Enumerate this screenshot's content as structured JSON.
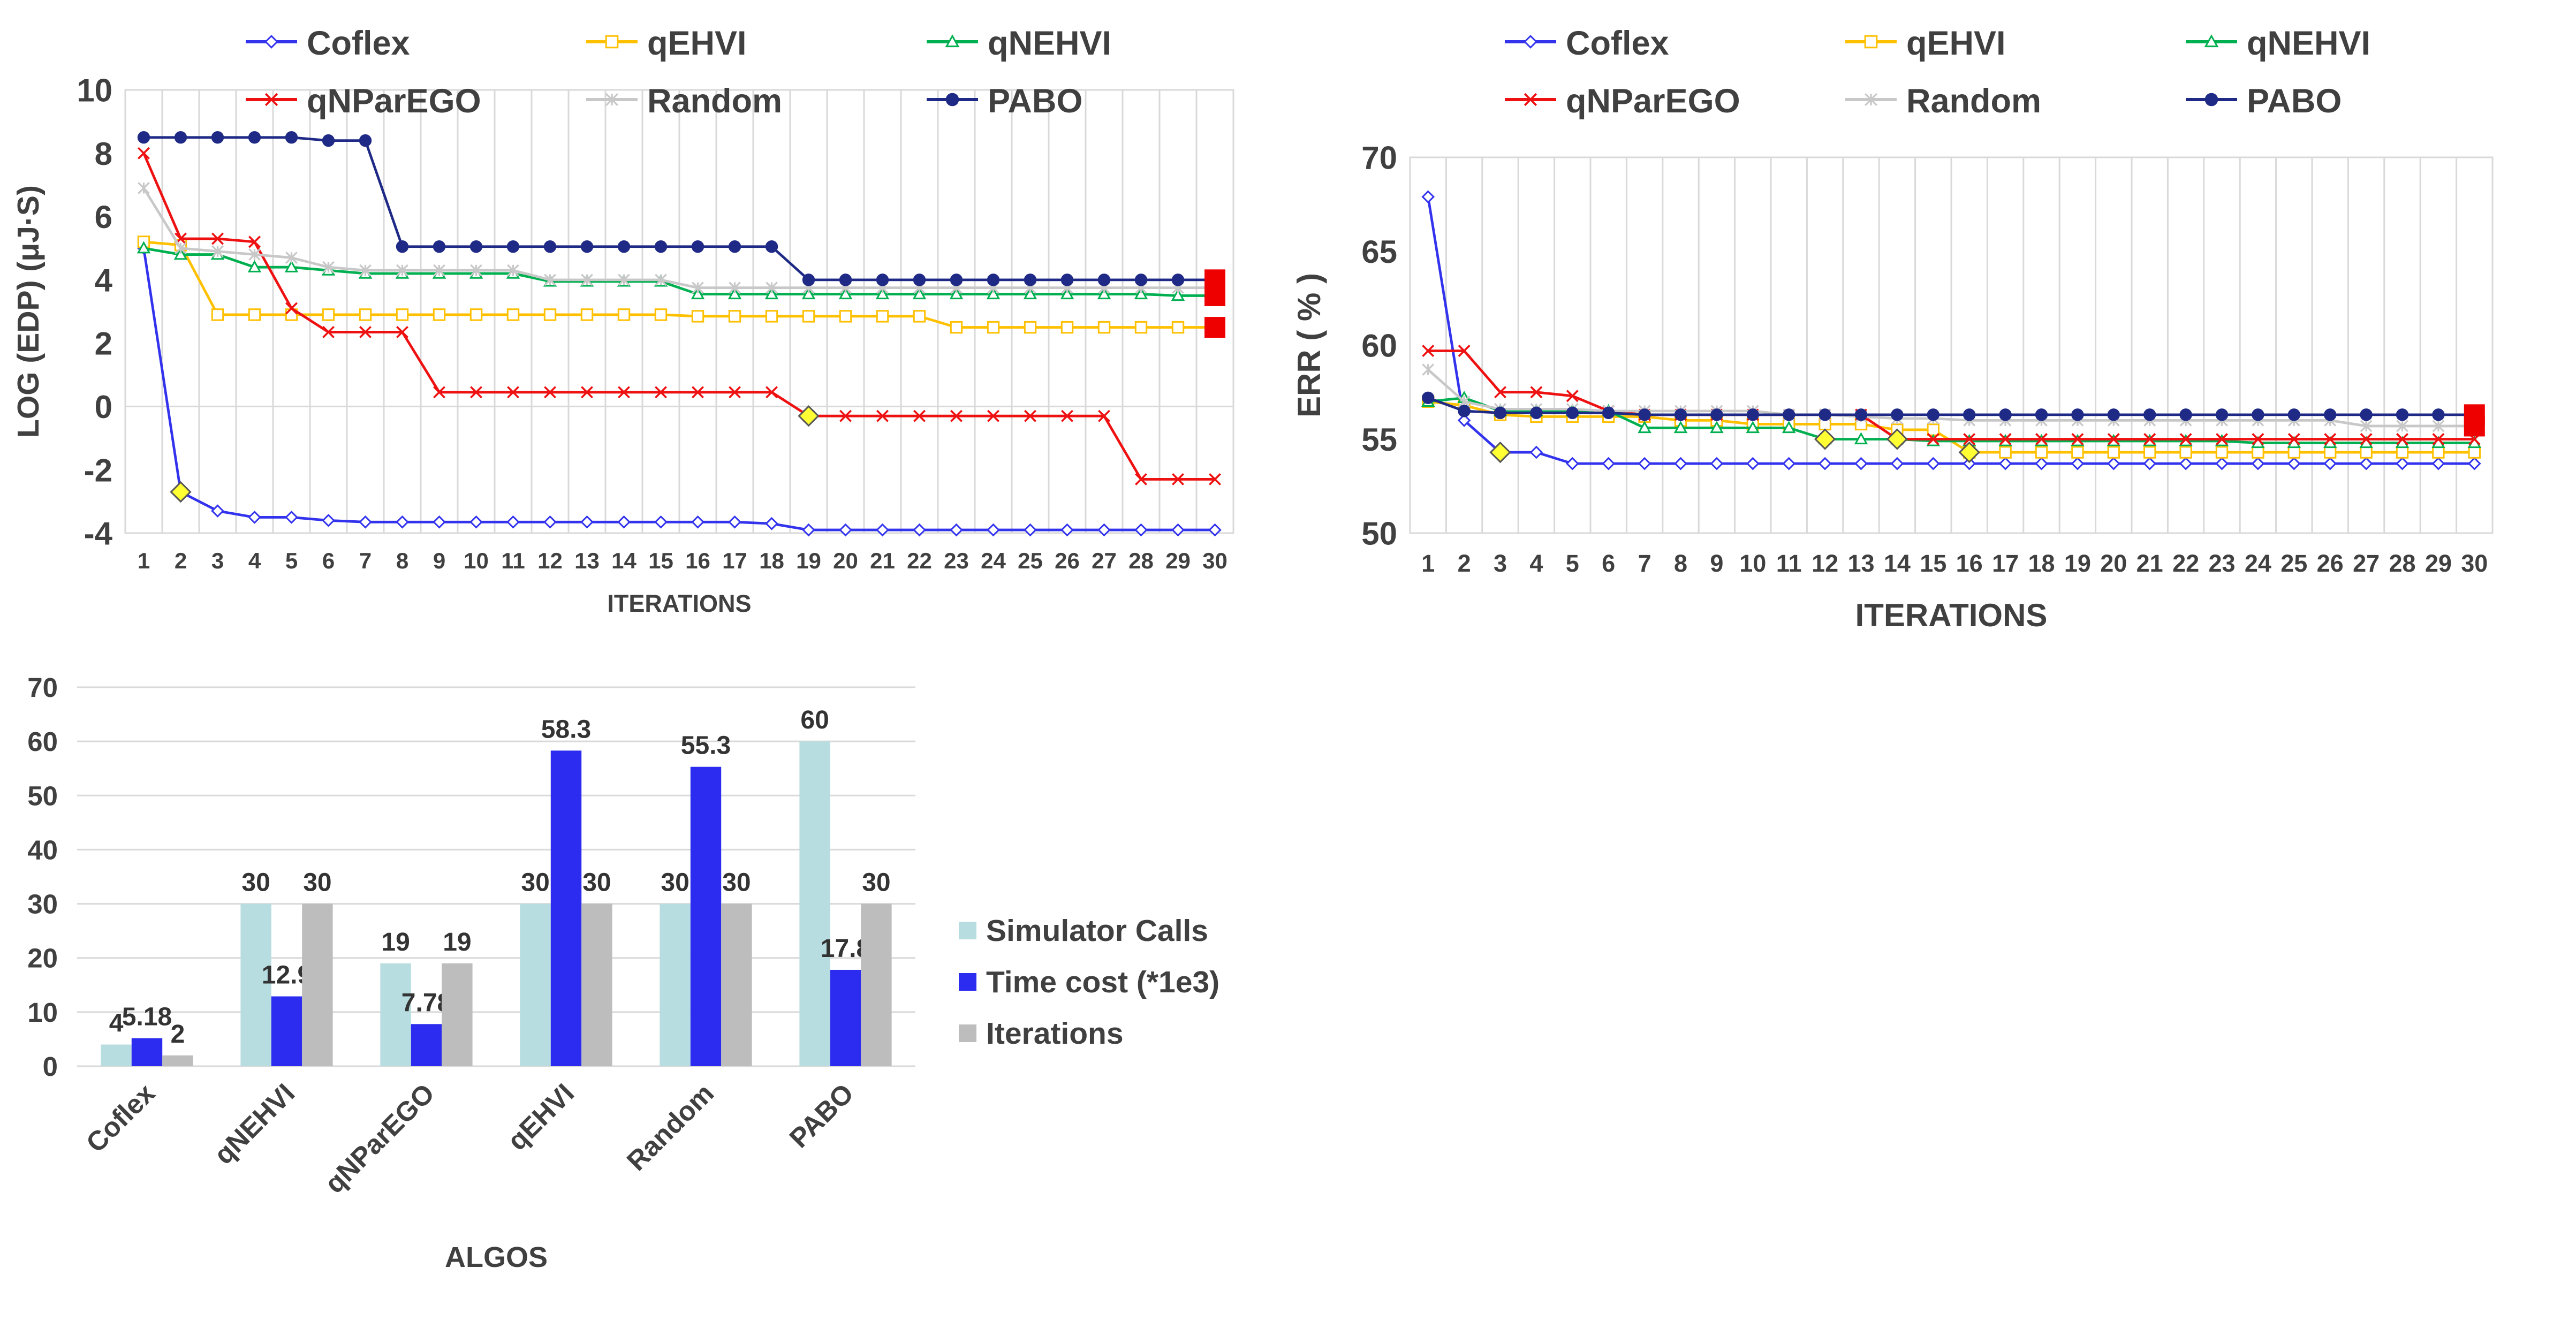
{
  "chart_data": [
    {
      "type": "line",
      "title": "",
      "xlabel": "ITERATIONS",
      "ylabel": "LOG (EDP) (μJ·S)",
      "ylim": [
        -4,
        10
      ],
      "yticks": [
        -4,
        -2,
        0,
        2,
        4,
        6,
        8,
        10
      ],
      "grid": "vertical",
      "legend_placement": "top",
      "x": [
        "1",
        "2",
        "3",
        "4",
        "5",
        "6",
        "7",
        "8",
        "9",
        "10",
        "11",
        "12",
        "13",
        "14",
        "15",
        "16",
        "17",
        "18",
        "19",
        "20",
        "21",
        "22",
        "23",
        "24",
        "25",
        "26",
        "27",
        "28",
        "29",
        "30"
      ],
      "series": [
        {
          "name": "Coflex",
          "color": "#3333ee",
          "marker": "diamond",
          "values": [
            5.0,
            -2.7,
            -3.3,
            -3.5,
            -3.5,
            -3.6,
            -3.65,
            -3.65,
            -3.65,
            -3.65,
            -3.65,
            -3.65,
            -3.65,
            -3.65,
            -3.65,
            -3.65,
            -3.65,
            -3.7,
            -3.9,
            -3.9,
            -3.9,
            -3.9,
            -3.9,
            -3.9,
            -3.9,
            -3.9,
            -3.9,
            -3.9,
            -3.9,
            -3.9
          ]
        },
        {
          "name": "qEHVI",
          "color": "#ffc000",
          "marker": "square",
          "values": [
            5.2,
            5.1,
            2.9,
            2.9,
            2.9,
            2.9,
            2.9,
            2.9,
            2.9,
            2.9,
            2.9,
            2.9,
            2.9,
            2.9,
            2.9,
            2.85,
            2.85,
            2.85,
            2.85,
            2.85,
            2.85,
            2.85,
            2.5,
            2.5,
            2.5,
            2.5,
            2.5,
            2.5,
            2.5,
            2.5
          ]
        },
        {
          "name": "qNEHVI",
          "color": "#00b050",
          "marker": "triangle",
          "values": [
            5.0,
            4.8,
            4.8,
            4.4,
            4.4,
            4.3,
            4.2,
            4.2,
            4.2,
            4.2,
            4.2,
            3.95,
            3.95,
            3.95,
            3.95,
            3.55,
            3.55,
            3.55,
            3.55,
            3.55,
            3.55,
            3.55,
            3.55,
            3.55,
            3.55,
            3.55,
            3.55,
            3.55,
            3.5,
            3.5
          ]
        },
        {
          "name": "qNParEGO",
          "color": "#ee1111",
          "marker": "x",
          "values": [
            8.0,
            5.3,
            5.3,
            5.2,
            3.1,
            2.35,
            2.35,
            2.35,
            0.45,
            0.45,
            0.45,
            0.45,
            0.45,
            0.45,
            0.45,
            0.45,
            0.45,
            0.45,
            -0.3,
            -0.3,
            -0.3,
            -0.3,
            -0.3,
            -0.3,
            -0.3,
            -0.3,
            -0.3,
            -2.3,
            -2.3,
            -2.3
          ]
        },
        {
          "name": "Random",
          "color": "#c8c8c8",
          "marker": "star",
          "values": [
            6.9,
            5.0,
            4.9,
            4.8,
            4.7,
            4.4,
            4.3,
            4.3,
            4.3,
            4.3,
            4.3,
            4.0,
            4.0,
            4.0,
            4.0,
            3.75,
            3.75,
            3.75,
            3.75,
            3.75,
            3.75,
            3.75,
            3.75,
            3.75,
            3.75,
            3.75,
            3.75,
            3.75,
            3.75,
            3.75
          ]
        },
        {
          "name": "PABO",
          "color": "#1f2a86",
          "marker": "circle",
          "values": [
            8.5,
            8.5,
            8.5,
            8.5,
            8.5,
            8.4,
            8.4,
            5.05,
            5.05,
            5.05,
            5.05,
            5.05,
            5.05,
            5.05,
            5.05,
            5.05,
            5.05,
            5.05,
            4.0,
            4.0,
            4.0,
            4.0,
            4.0,
            4.0,
            4.0,
            4.0,
            4.0,
            4.0,
            4.0,
            4.0
          ]
        }
      ],
      "highlights": [
        {
          "series": "Coflex",
          "iteration": "2",
          "value": -2.7,
          "color": "#ffff33",
          "shape": "diamond"
        },
        {
          "series": "qNParEGO",
          "iteration": "19",
          "value": -0.3,
          "color": "#ffff33",
          "shape": "diamond"
        },
        {
          "series": "PABO",
          "iteration": "30",
          "value": 4.0,
          "color": "#ee0000",
          "shape": "square"
        },
        {
          "series": "qNEHVI",
          "iteration": "30",
          "value": 3.5,
          "color": "#ee0000",
          "shape": "square"
        },
        {
          "series": "qEHVI",
          "iteration": "30",
          "value": 2.5,
          "color": "#ee0000",
          "shape": "square"
        }
      ]
    },
    {
      "type": "line",
      "title": "",
      "xlabel": "ITERATIONS",
      "ylabel": "ERR ( % )",
      "ylim": [
        50,
        70
      ],
      "yticks": [
        50,
        55,
        60,
        65,
        70
      ],
      "grid": "vertical",
      "legend_placement": "top",
      "x": [
        "1",
        "2",
        "3",
        "4",
        "5",
        "6",
        "7",
        "8",
        "9",
        "10",
        "11",
        "12",
        "13",
        "14",
        "15",
        "16",
        "17",
        "18",
        "19",
        "20",
        "21",
        "22",
        "23",
        "24",
        "25",
        "26",
        "27",
        "28",
        "29",
        "30"
      ],
      "series": [
        {
          "name": "Coflex",
          "color": "#3333ee",
          "marker": "diamond",
          "values": [
            67.9,
            56.0,
            54.3,
            54.3,
            53.7,
            53.7,
            53.7,
            53.7,
            53.7,
            53.7,
            53.7,
            53.7,
            53.7,
            53.7,
            53.7,
            53.7,
            53.7,
            53.7,
            53.7,
            53.7,
            53.7,
            53.7,
            53.7,
            53.7,
            53.7,
            53.7,
            53.7,
            53.7,
            53.7,
            53.7
          ]
        },
        {
          "name": "qEHVI",
          "color": "#ffc000",
          "marker": "square",
          "values": [
            57.0,
            56.8,
            56.3,
            56.2,
            56.2,
            56.2,
            56.2,
            56.0,
            56.0,
            55.8,
            55.8,
            55.8,
            55.8,
            55.5,
            55.5,
            54.3,
            54.3,
            54.3,
            54.3,
            54.3,
            54.3,
            54.3,
            54.3,
            54.3,
            54.3,
            54.3,
            54.3,
            54.3,
            54.3,
            54.3
          ]
        },
        {
          "name": "qNEHVI",
          "color": "#00b050",
          "marker": "triangle",
          "values": [
            57.0,
            57.2,
            56.5,
            56.5,
            56.5,
            56.5,
            55.6,
            55.6,
            55.6,
            55.6,
            55.6,
            55.0,
            55.0,
            55.0,
            54.9,
            54.9,
            54.9,
            54.9,
            54.9,
            54.9,
            54.9,
            54.9,
            54.9,
            54.8,
            54.8,
            54.8,
            54.8,
            54.8,
            54.8,
            54.8
          ]
        },
        {
          "name": "qNParEGO",
          "color": "#ee1111",
          "marker": "x",
          "values": [
            59.7,
            59.7,
            57.5,
            57.5,
            57.3,
            56.5,
            56.3,
            56.3,
            56.3,
            56.3,
            56.3,
            56.3,
            56.3,
            55.0,
            55.0,
            55.0,
            55.0,
            55.0,
            55.0,
            55.0,
            55.0,
            55.0,
            55.0,
            55.0,
            55.0,
            55.0,
            55.0,
            55.0,
            55.0,
            55.0
          ]
        },
        {
          "name": "Random",
          "color": "#c8c8c8",
          "marker": "star",
          "values": [
            58.7,
            57.0,
            56.6,
            56.6,
            56.6,
            56.5,
            56.5,
            56.5,
            56.5,
            56.5,
            56.3,
            56.3,
            56.2,
            56.1,
            56.1,
            56.0,
            56.0,
            56.0,
            56.0,
            56.0,
            56.0,
            56.0,
            56.0,
            56.0,
            56.0,
            56.0,
            55.7,
            55.7,
            55.7,
            55.7
          ]
        },
        {
          "name": "PABO",
          "color": "#1f2a86",
          "marker": "circle",
          "values": [
            57.2,
            56.5,
            56.4,
            56.4,
            56.4,
            56.4,
            56.3,
            56.3,
            56.3,
            56.3,
            56.3,
            56.3,
            56.3,
            56.3,
            56.3,
            56.3,
            56.3,
            56.3,
            56.3,
            56.3,
            56.3,
            56.3,
            56.3,
            56.3,
            56.3,
            56.3,
            56.3,
            56.3,
            56.3,
            56.3
          ]
        }
      ],
      "highlights": [
        {
          "series": "Coflex",
          "iteration": "3",
          "value": 54.3,
          "color": "#ffff33",
          "shape": "diamond"
        },
        {
          "series": "qNEHVI",
          "iteration": "12",
          "value": 55.0,
          "color": "#ffff33",
          "shape": "diamond"
        },
        {
          "series": "qNParEGO",
          "iteration": "14",
          "value": 55.0,
          "color": "#ffff33",
          "shape": "diamond"
        },
        {
          "series": "qEHVI",
          "iteration": "16",
          "value": 54.3,
          "color": "#ffff33",
          "shape": "diamond"
        },
        {
          "series": "PABO",
          "iteration": "30",
          "value": 56.3,
          "color": "#ee0000",
          "shape": "square"
        },
        {
          "series": "Random",
          "iteration": "30",
          "value": 55.7,
          "color": "#ee0000",
          "shape": "square"
        }
      ]
    },
    {
      "type": "bar",
      "title": "",
      "xlabel": "ALGOS",
      "ylabel": "",
      "ylim": [
        0,
        70
      ],
      "yticks": [
        0,
        10,
        20,
        30,
        40,
        50,
        60,
        70
      ],
      "grid": "horizontal",
      "legend_placement": "right",
      "categories": [
        "Coflex",
        "qNEHVI",
        "qNParEGO",
        "qEHVI",
        "Random",
        "PABO"
      ],
      "series": [
        {
          "name": "Simulator Calls",
          "color": "#b7dde0",
          "values": [
            4,
            30,
            19,
            30,
            30,
            60
          ],
          "labels": [
            "4",
            "30",
            "19",
            "30",
            "30",
            "60"
          ]
        },
        {
          "name": "Time cost (*1e3)",
          "color": "#2c2cf0",
          "values": [
            5.18,
            12.9,
            7.78,
            58.3,
            55.3,
            17.8
          ],
          "labels": [
            "5.18",
            "12.9",
            "7.78",
            "58.3",
            "55.3",
            "17.8"
          ]
        },
        {
          "name": "Iterations",
          "color": "#bdbdbd",
          "values": [
            2,
            30,
            19,
            30,
            30,
            30
          ],
          "labels": [
            "2",
            "30",
            "19",
            "30",
            "30",
            "30"
          ]
        }
      ]
    }
  ]
}
